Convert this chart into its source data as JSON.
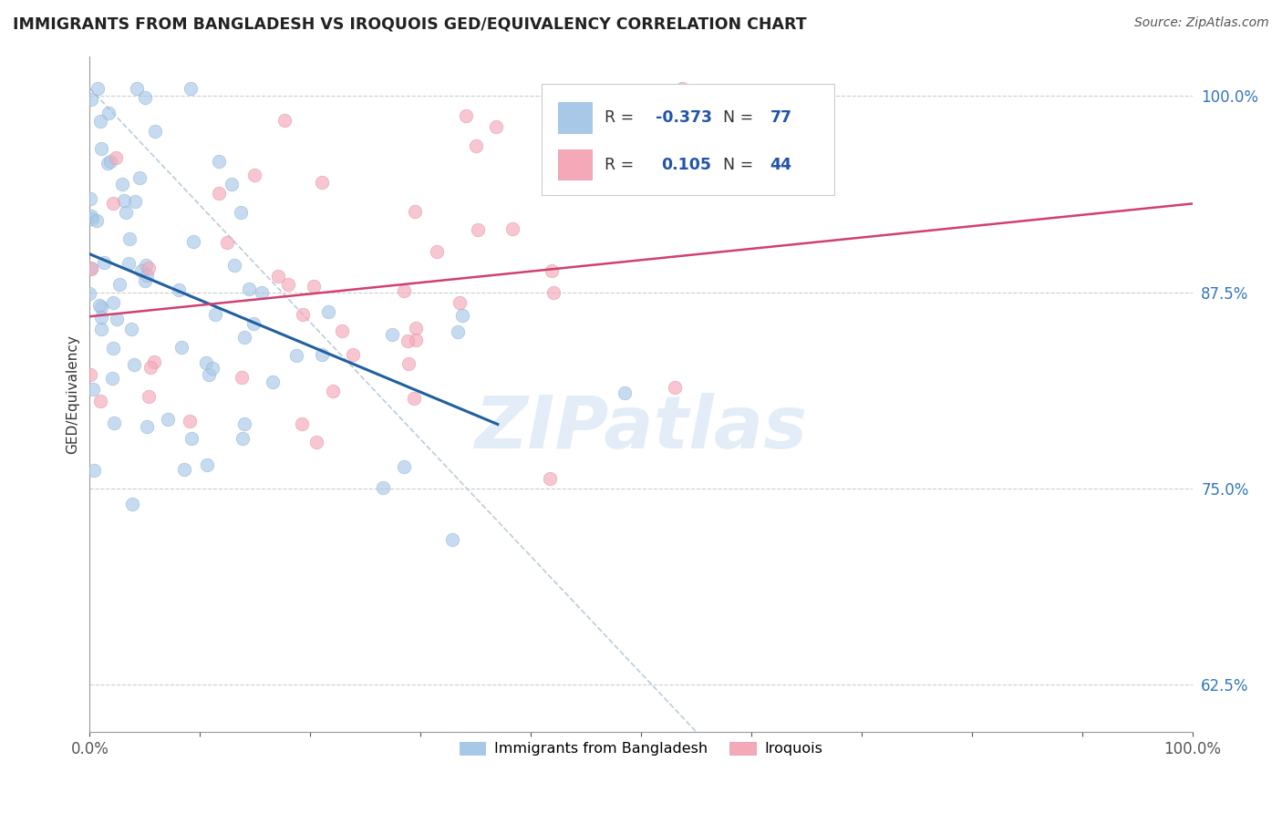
{
  "title": "IMMIGRANTS FROM BANGLADESH VS IROQUOIS GED/EQUIVALENCY CORRELATION CHART",
  "source_text": "Source: ZipAtlas.com",
  "ylabel": "GED/Equivalency",
  "legend_label1": "Immigrants from Bangladesh",
  "legend_label2": "Iroquois",
  "R1": -0.373,
  "N1": 77,
  "R2": 0.105,
  "N2": 44,
  "color1": "#a8c8e8",
  "color2": "#f4a8b8",
  "line_color1": "#2060a0",
  "line_color2": "#d04070",
  "xlim": [
    0.0,
    1.0
  ],
  "ylim": [
    0.595,
    1.025
  ],
  "yticks": [
    0.625,
    0.75,
    0.875,
    1.0
  ],
  "ytick_labels": [
    "62.5%",
    "75.0%",
    "87.5%",
    "100.0%"
  ],
  "xticks": [
    0.0,
    1.0
  ],
  "xtick_labels": [
    "0.0%",
    "100.0%"
  ],
  "watermark": "ZIPatlas",
  "background_color": "#ffffff"
}
